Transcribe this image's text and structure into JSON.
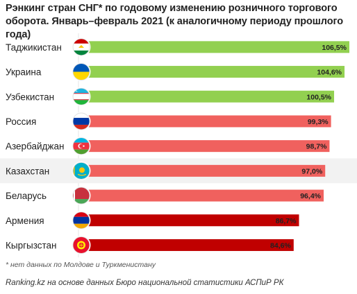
{
  "title": "Рэнкинг стран СНГ* по годовому изменению розничного торгового оборота. Январь–февраль 2021  (к аналогичному периоду прошлого года)",
  "footnote": "* нет данных по Молдове и Туркменистану",
  "source": "Ranking.kz на основе данных Бюро национальной статистики АСПиР РК",
  "chart_data": {
    "type": "bar",
    "orientation": "horizontal",
    "title": "Рэнкинг стран СНГ* по годовому изменению розничного торгового оборота. Январь–февраль 2021  (к аналогичному периоду прошлого года)",
    "categories": [
      "Таджикистан",
      "Украина",
      "Узбекистан",
      "Россия",
      "Азербайджан",
      "Казахстан",
      "Беларусь",
      "Армения",
      "Кыргызстан"
    ],
    "values": [
      106.5,
      104.6,
      100.5,
      99.3,
      98.7,
      97.0,
      96.4,
      86.7,
      84.6
    ],
    "value_labels": [
      "106,5%",
      "104,6%",
      "100,5%",
      "99,3%",
      "98,7%",
      "97,0%",
      "96,4%",
      "86,7%",
      "84,6%"
    ],
    "flags": [
      "tajikistan-flag",
      "ukraine-flag",
      "uzbekistan-flag",
      "russia-flag",
      "azerbaijan-flag",
      "kazakhstan-flag",
      "belarus-flag",
      "armenia-flag",
      "kyrgyzstan-flag"
    ],
    "colors": [
      "#92d050",
      "#92d050",
      "#92d050",
      "#f0615e",
      "#f0615e",
      "#f0615e",
      "#f0615e",
      "#c00000",
      "#c00000"
    ],
    "highlight_row": "Казахстан",
    "highlight_color": "#f2f2f2"
  }
}
